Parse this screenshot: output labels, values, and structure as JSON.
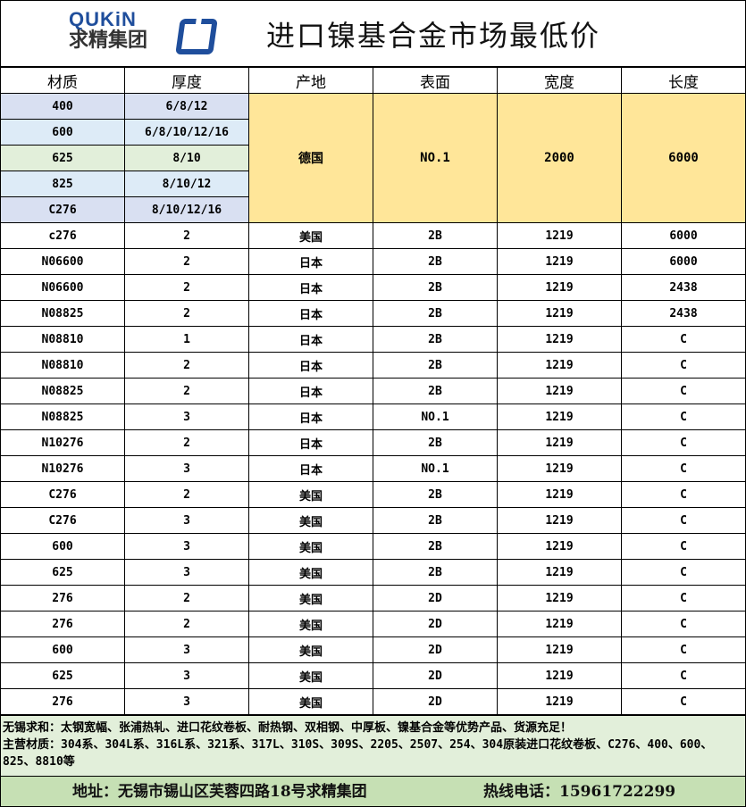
{
  "header": {
    "logo_en": "QUKiN",
    "logo_cn": "求精集团",
    "title": "进口镍基合金市场最低价"
  },
  "columns": [
    "材质",
    "厚度",
    "产地",
    "表面",
    "宽度",
    "长度"
  ],
  "merged_group": {
    "rows": [
      {
        "material": "400",
        "thickness": "6/8/12"
      },
      {
        "material": "600",
        "thickness": "6/8/10/12/16"
      },
      {
        "material": "625",
        "thickness": "8/10"
      },
      {
        "material": "825",
        "thickness": "8/10/12"
      },
      {
        "material": "C276",
        "thickness": "8/10/12/16"
      }
    ],
    "origin": "德国",
    "surface": "NO.1",
    "width": "2000",
    "length": "6000"
  },
  "rows": [
    [
      "c276",
      "2",
      "美国",
      "2B",
      "1219",
      "6000"
    ],
    [
      "N06600",
      "2",
      "日本",
      "2B",
      "1219",
      "6000"
    ],
    [
      "N06600",
      "2",
      "日本",
      "2B",
      "1219",
      "2438"
    ],
    [
      "N08825",
      "2",
      "日本",
      "2B",
      "1219",
      "2438"
    ],
    [
      "N08810",
      "1",
      "日本",
      "2B",
      "1219",
      "C"
    ],
    [
      "N08810",
      "2",
      "日本",
      "2B",
      "1219",
      "C"
    ],
    [
      "N08825",
      "2",
      "日本",
      "2B",
      "1219",
      "C"
    ],
    [
      "N08825",
      "3",
      "日本",
      "NO.1",
      "1219",
      "C"
    ],
    [
      "N10276",
      "2",
      "日本",
      "2B",
      "1219",
      "C"
    ],
    [
      "N10276",
      "3",
      "日本",
      "NO.1",
      "1219",
      "C"
    ],
    [
      "C276",
      "2",
      "美国",
      "2B",
      "1219",
      "C"
    ],
    [
      "C276",
      "3",
      "美国",
      "2B",
      "1219",
      "C"
    ],
    [
      "600",
      "3",
      "美国",
      "2B",
      "1219",
      "C"
    ],
    [
      "625",
      "3",
      "美国",
      "2B",
      "1219",
      "C"
    ],
    [
      "276",
      "2",
      "美国",
      "2D",
      "1219",
      "C"
    ],
    [
      "276",
      "2",
      "美国",
      "2D",
      "1219",
      "C"
    ],
    [
      "600",
      "3",
      "美国",
      "2D",
      "1219",
      "C"
    ],
    [
      "625",
      "3",
      "美国",
      "2D",
      "1219",
      "C"
    ],
    [
      "276",
      "3",
      "美国",
      "2D",
      "1219",
      "C"
    ]
  ],
  "notes": [
    "无锡求和：太钢宽幅、张浦热轧、进口花纹卷板、耐热钢、双相钢、中厚板、镍基合金等优势产品、货源充足！",
    "主营材质：304系、304L系、316L系、321系、317L、310S、309S、2205、2507、254、304原装进口花纹卷板、C276、400、600、825、8810等"
  ],
  "footer": {
    "address": "地址：无锡市锡山区芙蓉四路18号求精集团",
    "hotline": "热线电话：15961722299"
  }
}
